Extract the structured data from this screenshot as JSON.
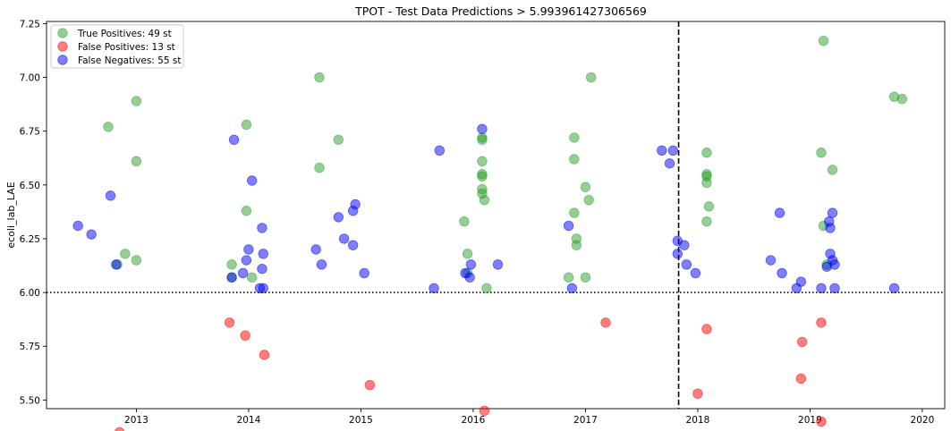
{
  "chart_data": {
    "type": "scatter",
    "title": "TPOT - Test Data Predictions > 5.993961427306569",
    "ylabel": "ecoli_lab_LAE",
    "xlabel": "",
    "xlim": [
      2012.2,
      2020.2
    ],
    "ylim": [
      5.46,
      7.26
    ],
    "xticks": [
      "2013",
      "2014",
      "2015",
      "2016",
      "2017",
      "2018",
      "2019",
      "2020"
    ],
    "yticks": [
      "5.50",
      "5.75",
      "6.00",
      "6.25",
      "6.50",
      "6.75",
      "7.00",
      "7.25"
    ],
    "threshold_y": 6.0,
    "vertical_line_x": 2017.83,
    "legend_position": "top-left",
    "series": [
      {
        "name": "True Positives: 49 st",
        "color": "#2ca02c",
        "points": [
          [
            2012.75,
            6.77
          ],
          [
            2013.0,
            6.89
          ],
          [
            2013.0,
            6.61
          ],
          [
            2012.9,
            6.18
          ],
          [
            2013.0,
            6.15
          ],
          [
            2012.83,
            6.13
          ],
          [
            2013.85,
            6.13
          ],
          [
            2013.85,
            6.07
          ],
          [
            2013.98,
            6.78
          ],
          [
            2013.98,
            6.38
          ],
          [
            2014.03,
            6.07
          ],
          [
            2014.63,
            7.0
          ],
          [
            2014.63,
            6.58
          ],
          [
            2014.8,
            6.71
          ],
          [
            2015.92,
            6.33
          ],
          [
            2015.95,
            6.18
          ],
          [
            2015.95,
            6.09
          ],
          [
            2016.08,
            6.72
          ],
          [
            2016.08,
            6.71
          ],
          [
            2016.08,
            6.61
          ],
          [
            2016.08,
            6.55
          ],
          [
            2016.08,
            6.54
          ],
          [
            2016.08,
            6.48
          ],
          [
            2016.08,
            6.46
          ],
          [
            2016.1,
            6.43
          ],
          [
            2016.12,
            6.02
          ],
          [
            2016.85,
            6.07
          ],
          [
            2016.9,
            6.72
          ],
          [
            2016.9,
            6.62
          ],
          [
            2016.9,
            6.37
          ],
          [
            2016.92,
            6.25
          ],
          [
            2016.92,
            6.22
          ],
          [
            2017.0,
            6.07
          ],
          [
            2017.05,
            7.0
          ],
          [
            2017.0,
            6.49
          ],
          [
            2017.03,
            6.43
          ],
          [
            2018.08,
            6.65
          ],
          [
            2018.08,
            6.55
          ],
          [
            2018.08,
            6.54
          ],
          [
            2018.08,
            6.51
          ],
          [
            2018.1,
            6.4
          ],
          [
            2018.08,
            6.33
          ],
          [
            2019.12,
            7.17
          ],
          [
            2019.1,
            6.65
          ],
          [
            2019.2,
            6.57
          ],
          [
            2019.12,
            6.31
          ],
          [
            2019.15,
            6.13
          ],
          [
            2019.75,
            6.91
          ],
          [
            2019.82,
            6.9
          ]
        ]
      },
      {
        "name": "False Positives: 13 st",
        "color": "#ff0000",
        "points": [
          [
            2012.85,
            5.35
          ],
          [
            2013.83,
            5.86
          ],
          [
            2013.97,
            5.8
          ],
          [
            2014.14,
            5.71
          ],
          [
            2015.08,
            5.57
          ],
          [
            2016.1,
            5.45
          ],
          [
            2017.18,
            5.86
          ],
          [
            2018.0,
            5.53
          ],
          [
            2018.08,
            5.83
          ],
          [
            2018.93,
            5.77
          ],
          [
            2018.92,
            5.6
          ],
          [
            2019.1,
            5.86
          ],
          [
            2019.1,
            5.4
          ]
        ]
      },
      {
        "name": "False Negatives: 55 st",
        "color": "#0000ff",
        "points": [
          [
            2012.48,
            6.31
          ],
          [
            2012.6,
            6.27
          ],
          [
            2012.77,
            6.45
          ],
          [
            2012.82,
            6.13
          ],
          [
            2013.87,
            6.71
          ],
          [
            2013.85,
            6.07
          ],
          [
            2013.95,
            6.09
          ],
          [
            2013.98,
            6.15
          ],
          [
            2014.0,
            6.2
          ],
          [
            2014.03,
            6.52
          ],
          [
            2014.12,
            6.3
          ],
          [
            2014.13,
            6.18
          ],
          [
            2014.12,
            6.11
          ],
          [
            2014.1,
            6.02
          ],
          [
            2014.13,
            6.02
          ],
          [
            2014.6,
            6.2
          ],
          [
            2014.65,
            6.13
          ],
          [
            2014.8,
            6.35
          ],
          [
            2014.85,
            6.25
          ],
          [
            2014.93,
            6.22
          ],
          [
            2014.93,
            6.38
          ],
          [
            2014.95,
            6.41
          ],
          [
            2015.03,
            6.09
          ],
          [
            2015.65,
            6.02
          ],
          [
            2015.7,
            6.66
          ],
          [
            2015.93,
            6.09
          ],
          [
            2015.97,
            6.07
          ],
          [
            2015.98,
            6.13
          ],
          [
            2016.08,
            6.76
          ],
          [
            2016.22,
            6.13
          ],
          [
            2016.85,
            6.31
          ],
          [
            2016.88,
            6.02
          ],
          [
            2017.68,
            6.66
          ],
          [
            2017.78,
            6.66
          ],
          [
            2017.75,
            6.6
          ],
          [
            2017.82,
            6.24
          ],
          [
            2017.82,
            6.18
          ],
          [
            2017.88,
            6.22
          ],
          [
            2017.9,
            6.13
          ],
          [
            2017.98,
            6.09
          ],
          [
            2018.65,
            6.15
          ],
          [
            2018.73,
            6.37
          ],
          [
            2018.75,
            6.09
          ],
          [
            2018.88,
            6.02
          ],
          [
            2018.92,
            6.05
          ],
          [
            2019.1,
            6.02
          ],
          [
            2019.17,
            6.33
          ],
          [
            2019.18,
            6.3
          ],
          [
            2019.2,
            6.37
          ],
          [
            2019.18,
            6.18
          ],
          [
            2019.2,
            6.15
          ],
          [
            2019.15,
            6.12
          ],
          [
            2019.22,
            6.13
          ],
          [
            2019.22,
            6.02
          ],
          [
            2019.75,
            6.02
          ]
        ]
      }
    ]
  }
}
